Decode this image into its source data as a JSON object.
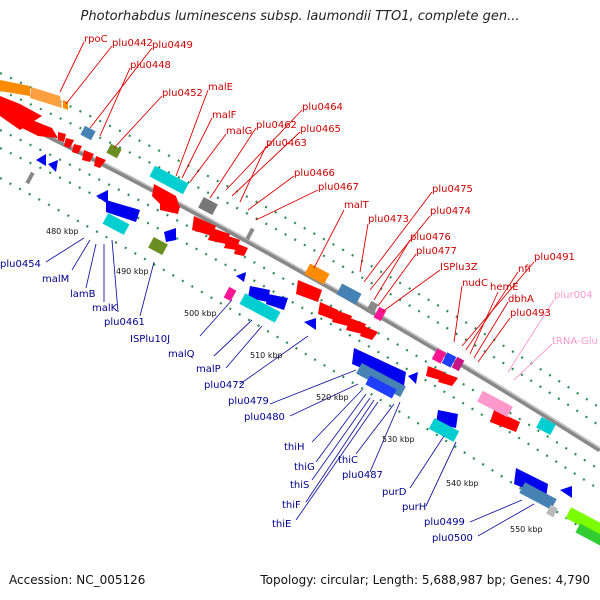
{
  "title": "Photorhabdus luminescens subsp. laumondii TTO1, complete gen...",
  "accession": "Accession: NC_005126",
  "summary": "Topology: circular; Length: 5,688,987 bp; Genes: 4,790",
  "colors": {
    "forward": "#ff0000",
    "reverse": "#0000ee",
    "forward_label": "#cc0000",
    "reverse_label": "#00008b",
    "rna": "#ff99cc",
    "backbone": "#888888",
    "tick": "#2e8b57"
  },
  "scale_ticks": [
    "480 kbp",
    "490 kbp",
    "500 kbp",
    "510 kbp",
    "520 kbp",
    "530 kbp",
    "540 kbp",
    "550 kbp"
  ],
  "forward_genes": [
    "rpoC",
    "plu0442",
    "plu0449",
    "plu0448",
    "plu0452",
    "malE",
    "malF",
    "malG",
    "plu0462",
    "plu0464",
    "plu0465",
    "plu0463",
    "plu0466",
    "plu0467",
    "malT",
    "plu0475",
    "plu0473",
    "plu0474",
    "plu0476",
    "plu0477",
    "ISPlu3Z",
    "nudC",
    "plu0491",
    "nfi",
    "hemE",
    "dbhA",
    "plu0493"
  ],
  "reverse_genes": [
    "plu0454",
    "malM",
    "lamB",
    "malK",
    "plu0461",
    "ISPlu10J",
    "malQ",
    "malP",
    "plu0472",
    "plu0479",
    "plu0480",
    "thiH",
    "thiG",
    "thiS",
    "thiF",
    "thiE",
    "thiC",
    "plu0487",
    "purD",
    "purH",
    "plu0499",
    "plu0500"
  ],
  "rna_genes": [
    "plur004",
    "tRNA-Glu"
  ]
}
